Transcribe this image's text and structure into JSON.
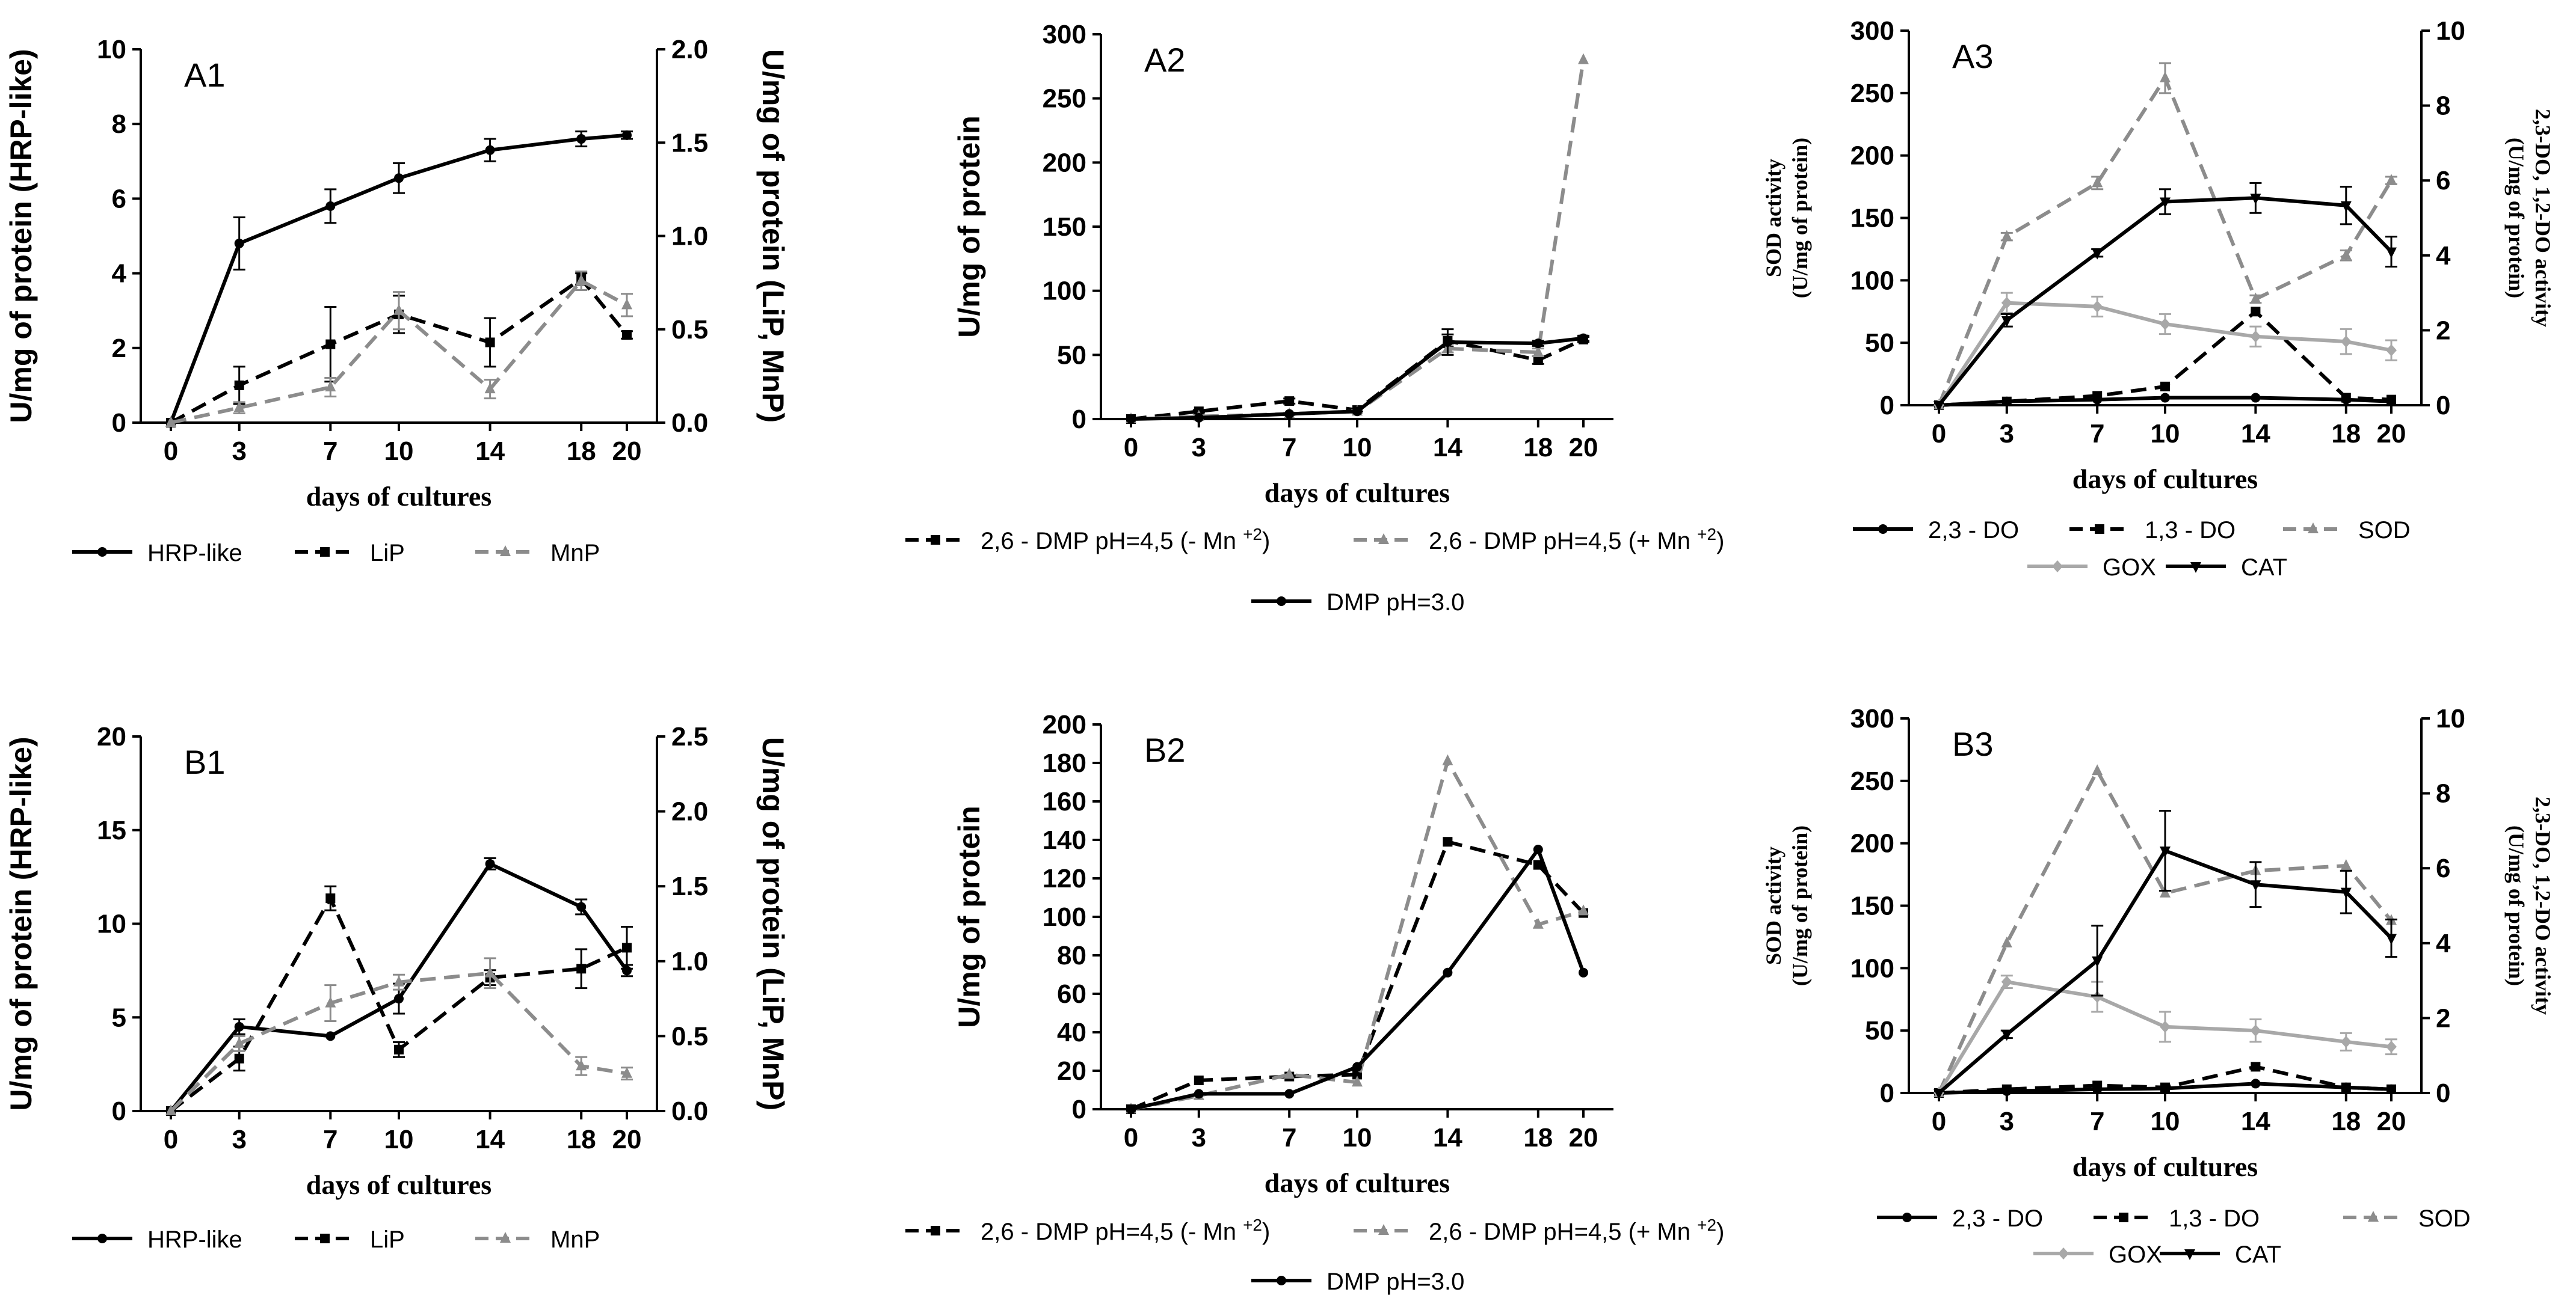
{
  "chart_data": [
    {
      "id": "A1",
      "type": "line",
      "panel_label": "A1",
      "x": [
        0,
        3,
        7,
        10,
        14,
        18,
        20
      ],
      "xlabel": "days of cultures",
      "ylabel": "U/mg of protein (HRP-like)",
      "ylim": [
        0,
        10
      ],
      "yticks": [
        "0",
        "2",
        "4",
        "6",
        "8",
        "10"
      ],
      "y2label": "U/mg of protein (LiP, MnP)",
      "y2lim": [
        0,
        2
      ],
      "y2ticks": [
        "0.0",
        "0.5",
        "1.0",
        "1.5",
        "2.0"
      ],
      "series": [
        {
          "name": "HRP-like",
          "axis": "y",
          "color": "#000000",
          "dash": "solid",
          "marker": "circle",
          "values": [
            0,
            4.8,
            5.8,
            6.55,
            7.3,
            7.6,
            7.7
          ],
          "err": [
            0,
            0.7,
            0.45,
            0.4,
            0.3,
            0.2,
            0.1
          ]
        },
        {
          "name": "LiP",
          "axis": "y2",
          "color": "#000000",
          "dash": "dashed",
          "marker": "square",
          "values": [
            0,
            0.2,
            0.42,
            0.58,
            0.43,
            0.77,
            0.47
          ],
          "err": [
            0,
            0.1,
            0.2,
            0.1,
            0.13,
            0.03,
            0.02
          ]
        },
        {
          "name": "MnP",
          "axis": "y2",
          "color": "#8c8c8c",
          "dash": "dashed",
          "marker": "triangle",
          "values": [
            0,
            0.08,
            0.19,
            0.6,
            0.18,
            0.76,
            0.63
          ],
          "err": [
            0,
            0.03,
            0.05,
            0.1,
            0.05,
            0.05,
            0.06
          ]
        }
      ]
    },
    {
      "id": "A2",
      "type": "line",
      "panel_label": "A2",
      "x": [
        0,
        3,
        7,
        10,
        14,
        18,
        20
      ],
      "xlabel": "days of cultures",
      "ylabel": "U/mg of protein",
      "ylim": [
        0,
        300
      ],
      "yticks": [
        "0",
        "50",
        "100",
        "150",
        "200",
        "250",
        "300"
      ],
      "series": [
        {
          "name": "2,6 - DMP pH=4,5 (- Mn +2)",
          "color": "#000000",
          "dash": "dashed",
          "marker": "square",
          "values": [
            0,
            6,
            14,
            7,
            61,
            46,
            62
          ],
          "err": [
            0,
            1,
            2,
            1,
            5,
            3,
            2
          ]
        },
        {
          "name": "2,6 - DMP pH=4,5 (+ Mn +2)",
          "color": "#8c8c8c",
          "dash": "dashed",
          "marker": "triangle",
          "values": [
            0,
            2,
            4,
            6,
            55,
            52,
            280
          ],
          "err": [
            0,
            1,
            1,
            1,
            3,
            3,
            0
          ]
        },
        {
          "name": "DMP pH=3.0",
          "color": "#000000",
          "dash": "solid",
          "marker": "circle",
          "values": [
            0,
            1,
            4,
            6,
            60,
            59,
            63
          ],
          "err": [
            0,
            0,
            0,
            0,
            10,
            2,
            2
          ]
        }
      ]
    },
    {
      "id": "A3",
      "type": "line",
      "panel_label": "A3",
      "x": [
        0,
        3,
        7,
        10,
        14,
        18,
        20
      ],
      "xlabel": "days of cultures",
      "ylabel_line1": "SOD activity",
      "ylabel_line2": "(U/mg of protein)",
      "ylim": [
        0,
        300
      ],
      "yticks": [
        "0",
        "50",
        "100",
        "150",
        "200",
        "250",
        "300"
      ],
      "y2label_line1": "2,3-DO, 1,2-DO activity",
      "y2label_line2": "(U/mg of protein)",
      "y2lim": [
        0,
        10
      ],
      "y2ticks": [
        "0",
        "2",
        "4",
        "6",
        "8",
        "10"
      ],
      "series": [
        {
          "name": "2,3 - DO",
          "axis": "y2",
          "color": "#000000",
          "dash": "solid",
          "marker": "circle",
          "values": [
            0,
            0.1,
            0.15,
            0.2,
            0.2,
            0.15,
            0.1
          ],
          "err": [
            0,
            0,
            0,
            0,
            0,
            0,
            0
          ]
        },
        {
          "name": "1,3 - DO",
          "axis": "y2",
          "color": "#000000",
          "dash": "dashed",
          "marker": "square",
          "values": [
            0,
            0.1,
            0.25,
            0.5,
            2.5,
            0.2,
            0.15
          ],
          "err": [
            0,
            0,
            0,
            0,
            0,
            0,
            0
          ]
        },
        {
          "name": "SOD",
          "axis": "y",
          "color": "#8c8c8c",
          "dash": "dashed",
          "marker": "triangle",
          "values": [
            0,
            135,
            178,
            262,
            85,
            120,
            180
          ],
          "err": [
            0,
            3,
            5,
            12,
            3,
            4,
            3
          ]
        },
        {
          "name": "GOX",
          "axis": "y",
          "color": "#a8a8a8",
          "dash": "solid",
          "marker": "diamond",
          "values": [
            0,
            82,
            79,
            65,
            55,
            51,
            44
          ],
          "err": [
            0,
            8,
            8,
            8,
            8,
            10,
            8
          ]
        },
        {
          "name": "CAT",
          "axis": "y",
          "color": "#000000",
          "dash": "solid",
          "marker": "triangle-down",
          "values": [
            0,
            68,
            122,
            163,
            166,
            160,
            123
          ],
          "err": [
            0,
            5,
            3,
            10,
            12,
            15,
            12
          ]
        }
      ]
    },
    {
      "id": "B1",
      "type": "line",
      "panel_label": "B1",
      "x": [
        0,
        3,
        7,
        10,
        14,
        18,
        20
      ],
      "xlabel": "days of cultures",
      "ylabel": "U/mg of protein (HRP-like)",
      "ylim": [
        0,
        20
      ],
      "yticks": [
        "0",
        "5",
        "10",
        "15",
        "20"
      ],
      "y2label": "U/mg of protein (LiP, MnP)",
      "y2lim": [
        0,
        2.5
      ],
      "y2ticks": [
        "0.0",
        "0.5",
        "1.0",
        "1.5",
        "2.0",
        "2.5"
      ],
      "series": [
        {
          "name": "HRP-like",
          "axis": "y",
          "color": "#000000",
          "dash": "solid",
          "marker": "circle",
          "values": [
            0,
            4.5,
            4,
            6,
            13.2,
            10.9,
            7.5
          ],
          "err": [
            0,
            0.4,
            0,
            0.8,
            0.3,
            0.4,
            0.3
          ]
        },
        {
          "name": "LiP",
          "axis": "y2",
          "color": "#000000",
          "dash": "dashed",
          "marker": "square",
          "values": [
            0,
            0.35,
            1.42,
            0.41,
            0.89,
            0.95,
            1.09
          ],
          "err": [
            0,
            0.08,
            0.08,
            0.05,
            0.05,
            0.13,
            0.14
          ]
        },
        {
          "name": "MnP",
          "axis": "y2",
          "color": "#8c8c8c",
          "dash": "dashed",
          "marker": "triangle",
          "values": [
            0,
            0.45,
            0.72,
            0.86,
            0.92,
            0.3,
            0.25
          ],
          "err": [
            0,
            0.05,
            0.12,
            0.05,
            0.1,
            0.06,
            0.04
          ]
        }
      ]
    },
    {
      "id": "B2",
      "type": "line",
      "panel_label": "B2",
      "x": [
        0,
        3,
        7,
        10,
        14,
        18,
        20
      ],
      "xlabel": "days of cultures",
      "ylabel": "U/mg of protein",
      "ylim": [
        0,
        200
      ],
      "yticks": [
        "0",
        "20",
        "40",
        "60",
        "80",
        "100",
        "120",
        "140",
        "160",
        "180",
        "200"
      ],
      "series": [
        {
          "name": "2,6 - DMP pH=4,5 (- Mn +2)",
          "color": "#000000",
          "dash": "dashed",
          "marker": "square",
          "values": [
            0,
            15,
            17,
            18,
            139,
            127,
            102
          ],
          "err": [
            0,
            0,
            0,
            0,
            0,
            0,
            0
          ]
        },
        {
          "name": "2,6 - DMP pH=4,5 (+ Mn +2)",
          "color": "#8c8c8c",
          "dash": "dashed",
          "marker": "triangle",
          "values": [
            0,
            7,
            18,
            14,
            181,
            96,
            103
          ],
          "err": [
            0,
            0,
            0,
            0,
            0,
            0,
            0
          ]
        },
        {
          "name": "DMP pH=3.0",
          "color": "#000000",
          "dash": "solid",
          "marker": "circle",
          "values": [
            0,
            8,
            8,
            22,
            71,
            135,
            71
          ],
          "err": [
            0,
            0,
            0,
            0,
            0,
            0,
            0
          ]
        }
      ]
    },
    {
      "id": "B3",
      "type": "line",
      "panel_label": "B3",
      "x": [
        0,
        3,
        7,
        10,
        14,
        18,
        20
      ],
      "xlabel": "days of cultures",
      "ylabel_line1": "SOD activity",
      "ylabel_line2": "(U/mg of protein)",
      "ylim": [
        0,
        300
      ],
      "yticks": [
        "0",
        "50",
        "100",
        "150",
        "200",
        "250",
        "300"
      ],
      "y2label_line1": "2,3-DO, 1,2-DO activity",
      "y2label_line2": "(U/mg of protein)",
      "y2lim": [
        0,
        10
      ],
      "y2ticks": [
        "0",
        "2",
        "4",
        "6",
        "8",
        "10"
      ],
      "series": [
        {
          "name": "2,3 - DO",
          "axis": "y2",
          "color": "#000000",
          "dash": "solid",
          "marker": "circle",
          "values": [
            0,
            0.05,
            0.1,
            0.12,
            0.25,
            0.15,
            0.1
          ],
          "err": [
            0,
            0,
            0,
            0,
            0,
            0,
            0
          ]
        },
        {
          "name": "1,3 - DO",
          "axis": "y2",
          "color": "#000000",
          "dash": "dashed",
          "marker": "square",
          "values": [
            0,
            0.1,
            0.2,
            0.15,
            0.7,
            0.15,
            0.1
          ],
          "err": [
            0,
            0,
            0,
            0,
            0,
            0,
            0
          ]
        },
        {
          "name": "SOD",
          "axis": "y",
          "color": "#8c8c8c",
          "dash": "dashed",
          "marker": "triangle",
          "values": [
            0,
            120,
            258,
            160,
            178,
            182,
            138
          ],
          "err": [
            0,
            0,
            0,
            0,
            0,
            0,
            0
          ]
        },
        {
          "name": "GOX",
          "axis": "y",
          "color": "#a8a8a8",
          "dash": "solid",
          "marker": "diamond",
          "values": [
            0,
            89,
            77,
            53,
            50,
            41,
            37
          ],
          "err": [
            0,
            5,
            12,
            12,
            9,
            7,
            6
          ]
        },
        {
          "name": "CAT",
          "axis": "y",
          "color": "#000000",
          "dash": "solid",
          "marker": "triangle-down",
          "values": [
            0,
            47,
            106,
            194,
            167,
            161,
            124
          ],
          "err": [
            0,
            3,
            28,
            32,
            18,
            17,
            15
          ]
        }
      ]
    }
  ]
}
